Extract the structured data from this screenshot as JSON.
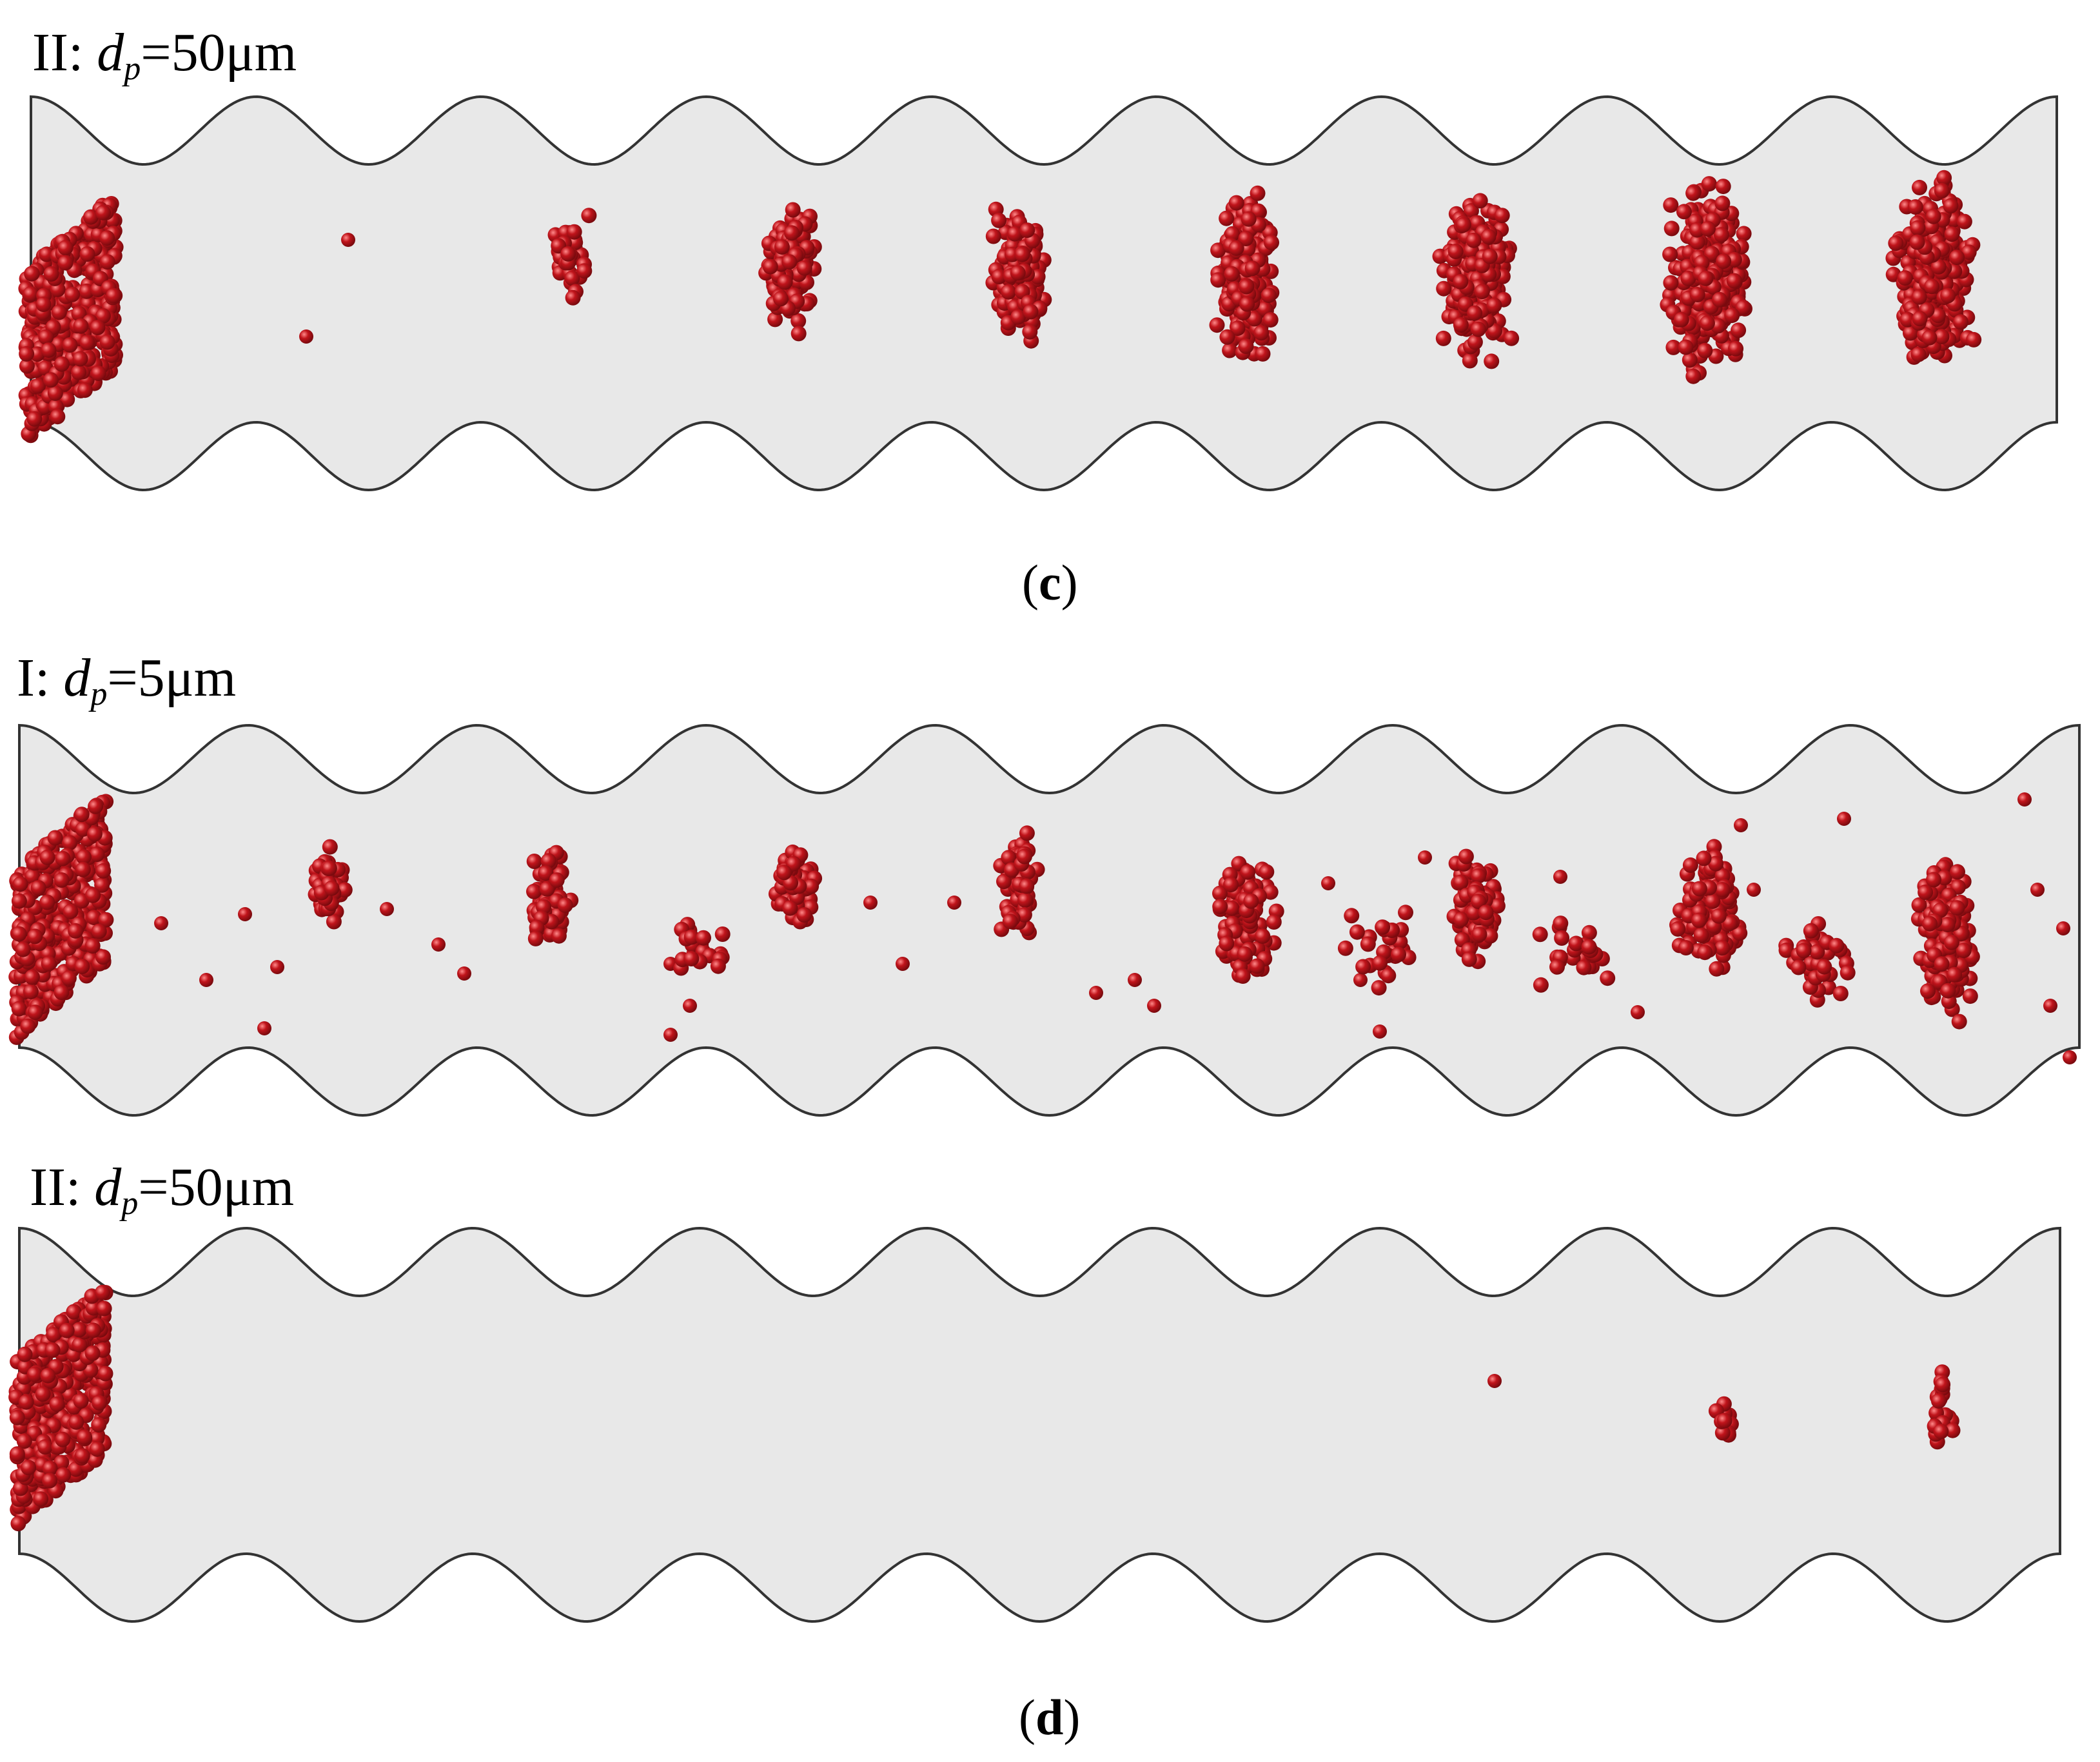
{
  "labels": {
    "c_channel": {
      "roman": "II:",
      "var": "d",
      "sub": "p",
      "value": "=50μm"
    },
    "d_top_channel": {
      "roman": "I:",
      "var": "d",
      "sub": "p",
      "value": "=5μm"
    },
    "d_bottom_channel": {
      "roman": "II:",
      "var": "d",
      "sub": "p",
      "value": "=50μm"
    }
  },
  "captions": {
    "c": {
      "open": "(",
      "letter": "c",
      "close": ")"
    },
    "d": {
      "open": "(",
      "letter": "d",
      "close": ")"
    }
  },
  "colors": {
    "channel_fill": "#e8e8e8",
    "channel_stroke": "#333333",
    "particle": "#c0141b",
    "particle_dark": "#7a0a0e"
  }
}
